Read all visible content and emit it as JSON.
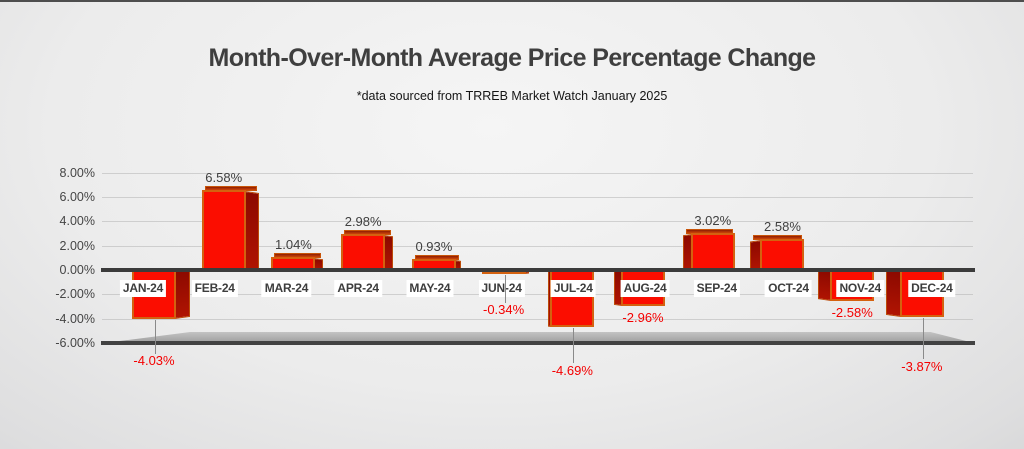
{
  "page": {
    "title": "Month-Over-Month Average Price Percentage Change",
    "subtitle": "*data sourced from TRREB Market Watch January 2025"
  },
  "chart_data": {
    "type": "bar",
    "title": "Month-Over-Month Average Price Percentage Change",
    "subtitle": "*data sourced from TRREB Market Watch January 2025",
    "categories": [
      "JAN-24",
      "FEB-24",
      "MAR-24",
      "APR-24",
      "MAY-24",
      "JUN-24",
      "JUL-24",
      "AUG-24",
      "SEP-24",
      "OCT-24",
      "NOV-24",
      "DEC-24"
    ],
    "values": [
      -4.03,
      6.58,
      1.04,
      2.98,
      0.93,
      -0.34,
      -4.69,
      -2.96,
      3.02,
      2.58,
      -2.58,
      -3.87
    ],
    "value_labels": [
      "-4.03%",
      "6.58%",
      "1.04%",
      "2.98%",
      "0.93%",
      "-0.34%",
      "-4.69%",
      "-2.96%",
      "3.02%",
      "2.58%",
      "-2.58%",
      "-3.87%"
    ],
    "y_ticks": [
      {
        "value": 8,
        "label": "8.00%"
      },
      {
        "value": 6,
        "label": "6.00%"
      },
      {
        "value": 4,
        "label": "4.00%"
      },
      {
        "value": 2,
        "label": "2.00%"
      },
      {
        "value": 0,
        "label": "0.00%"
      },
      {
        "value": -2,
        "label": "-2.00%"
      },
      {
        "value": -4,
        "label": "-4.00%"
      },
      {
        "value": -6,
        "label": "-6.00%"
      }
    ],
    "ylim": [
      -6,
      8
    ],
    "grid": true,
    "legend": false,
    "bar_style": "3d",
    "colors": {
      "bar_front": "#fb0d00",
      "bar_side": "#9c0a00",
      "bar_border": "#d4610f",
      "positive_label": "#404040",
      "negative_label": "#f40000",
      "axis_line": "#3b3b3b",
      "leader_line": "#8a8a8a",
      "category_label_bg": "#ffffff"
    }
  }
}
